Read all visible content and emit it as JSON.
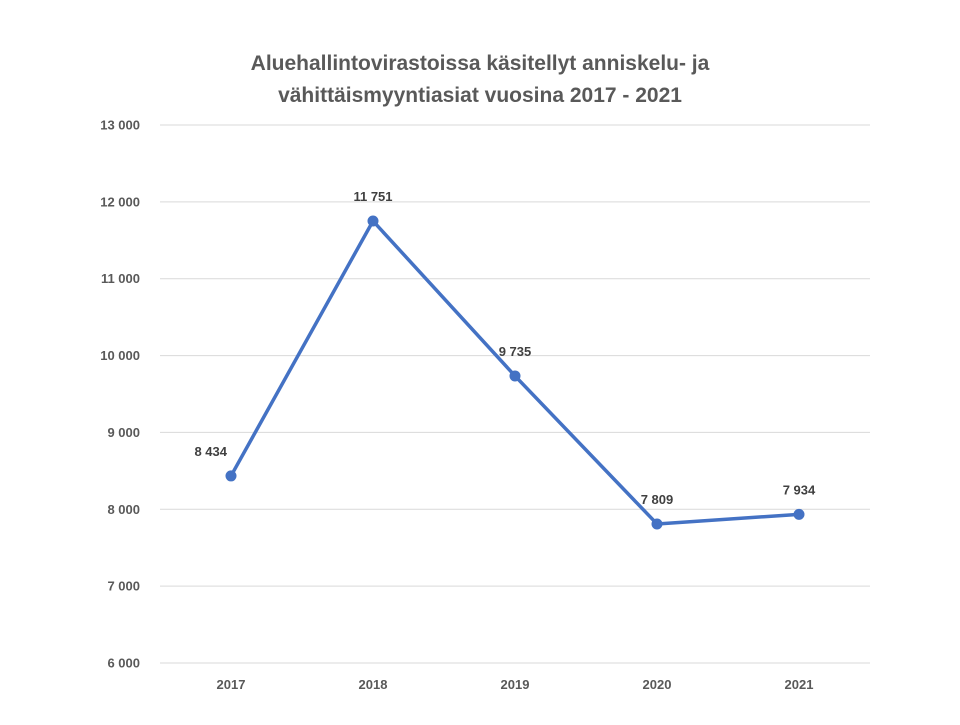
{
  "colors": {
    "series": "#4472c4",
    "grid": "#d9d9d9",
    "axis_text": "#595959",
    "data_label": "#404040",
    "title": "#595959"
  },
  "chart_data": {
    "type": "line",
    "title_lines": [
      "Aluehallintovirastoissa käsitellyt anniskelu- ja",
      "vähittäismyyntiasiat vuosina 2017 - 2021"
    ],
    "xlabel": "",
    "ylabel": "",
    "categories": [
      "2017",
      "2018",
      "2019",
      "2020",
      "2021"
    ],
    "series": [
      {
        "values": [
          8434,
          11751,
          9735,
          7809,
          7934
        ],
        "value_labels": [
          "8 434",
          "11 751",
          "9 735",
          "7 809",
          "7 934"
        ]
      }
    ],
    "ylim": [
      6000,
      13000
    ],
    "yticks": [
      6000,
      7000,
      8000,
      9000,
      10000,
      11000,
      12000,
      13000
    ],
    "ytick_labels": [
      "6 000",
      "7 000",
      "8 000",
      "9 000",
      "10 000",
      "11 000",
      "12 000",
      "13 000"
    ],
    "grid": true,
    "legend": "none",
    "markers": true,
    "data_labels": "above"
  }
}
